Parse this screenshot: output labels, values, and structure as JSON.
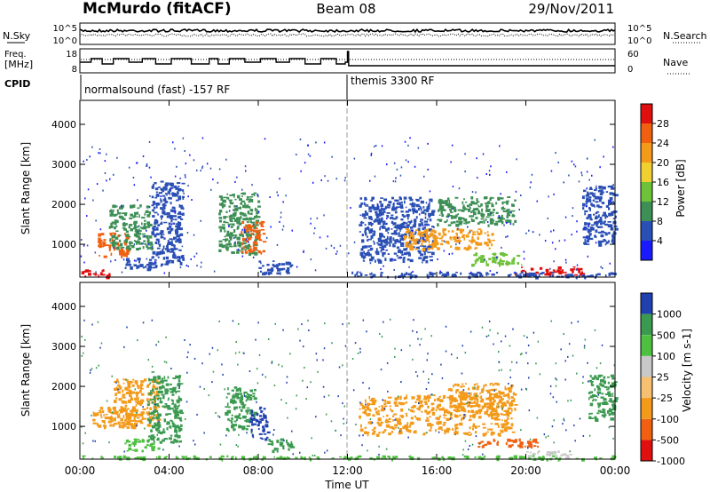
{
  "header": {
    "station": "McMurdo (fitACF)",
    "beam": "Beam 08",
    "date": "29/Nov/2011"
  },
  "chart_data": [
    {
      "type": "line",
      "name": "noise-panel",
      "left_label": "N.Sky",
      "right_label": "N.Search",
      "left_ticks": [
        "10^5",
        "10^0"
      ],
      "right_ticks": [
        "10^5",
        "10^0"
      ],
      "yscale": "log"
    },
    {
      "type": "line",
      "name": "frequency-panel",
      "left_label_lines": [
        "Freq.",
        "[MHz]"
      ],
      "left_ticks": [
        "18",
        "8"
      ],
      "right_label": "Nave",
      "right_ticks": [
        "60",
        "0"
      ],
      "freq_steps": [
        [
          0.0,
          13
        ],
        [
          0.5,
          15
        ],
        [
          1.0,
          12
        ],
        [
          1.5,
          15
        ],
        [
          2.2,
          13
        ],
        [
          2.8,
          15
        ],
        [
          3.4,
          12
        ],
        [
          4.1,
          15
        ],
        [
          5.0,
          12
        ],
        [
          5.8,
          15
        ],
        [
          6.2,
          12
        ],
        [
          6.7,
          15
        ],
        [
          7.4,
          13
        ],
        [
          8.1,
          15
        ],
        [
          8.8,
          13
        ],
        [
          9.4,
          15
        ],
        [
          10.1,
          12
        ],
        [
          10.8,
          15
        ],
        [
          11.5,
          12
        ],
        [
          11.9,
          13
        ],
        [
          12.0,
          19
        ],
        [
          12.05,
          11
        ],
        [
          24.0,
          11
        ]
      ]
    },
    {
      "type": "table",
      "name": "cpid-panel",
      "label": "CPID",
      "segments": [
        {
          "start_hour": 0,
          "end_hour": 12,
          "text": "normalsound (fast) -157 RF"
        },
        {
          "start_hour": 12,
          "end_hour": 24,
          "text": "themis 3300 RF"
        }
      ]
    },
    {
      "type": "heatmap",
      "name": "power-panel",
      "ylabel": "Slant Range [km]",
      "yticks": [
        "1000",
        "2000",
        "3000",
        "4000"
      ],
      "ylim": [
        180,
        4600
      ],
      "colorbar_label": "Power [dB]",
      "colorbar_ticks": [
        "4",
        "8",
        "12",
        "16",
        "20",
        "24",
        "28"
      ],
      "colorbar_colors": [
        "#1a1aff",
        "#2a4fb5",
        "#3d8f55",
        "#6dc23a",
        "#f0d030",
        "#f39a1a",
        "#f06010",
        "#e01010"
      ],
      "echo_regions": [
        [
          0.0,
          1.3,
          200,
          380,
          "#e01010"
        ],
        [
          0.8,
          2.2,
          700,
          1300,
          "#f06010"
        ],
        [
          1.3,
          3.2,
          900,
          2000,
          "#3d8f55"
        ],
        [
          2.0,
          3.4,
          400,
          700,
          "#2a4fb5"
        ],
        [
          3.2,
          4.6,
          500,
          2600,
          "#2a4fb5"
        ],
        [
          6.2,
          8.0,
          800,
          2300,
          "#3d8f55"
        ],
        [
          7.2,
          8.2,
          800,
          1600,
          "#f06010"
        ],
        [
          8.0,
          9.5,
          300,
          600,
          "#2a4fb5"
        ],
        [
          12.5,
          15.8,
          600,
          2200,
          "#2a4fb5"
        ],
        [
          14.5,
          18.5,
          900,
          1400,
          "#f39a1a"
        ],
        [
          16.0,
          19.5,
          1500,
          2200,
          "#3d8f55"
        ],
        [
          17.5,
          19.8,
          500,
          800,
          "#6dc23a"
        ],
        [
          19.5,
          22.5,
          250,
          450,
          "#e01010"
        ],
        [
          22.5,
          24.0,
          1000,
          2500,
          "#2a4fb5"
        ],
        [
          12.0,
          24.0,
          200,
          320,
          "#2a4fb5"
        ]
      ]
    },
    {
      "type": "heatmap",
      "name": "velocity-panel",
      "ylabel": "Slant Range [km]",
      "yticks": [
        "1000",
        "2000",
        "3000",
        "4000"
      ],
      "ylim": [
        180,
        4600
      ],
      "colorbar_label": "Velocity [m s-1]",
      "colorbar_ticks": [
        "1000",
        "500",
        "100",
        "25",
        "-25",
        "-100",
        "-500",
        "-1000"
      ],
      "colorbar_colors": [
        "#2040b0",
        "#3a9a50",
        "#4ec040",
        "#c8c8c8",
        "#f7c070",
        "#f39a1a",
        "#f06010",
        "#e01010"
      ],
      "echo_regions": [
        [
          0.5,
          2.5,
          1000,
          1500,
          "#f39a1a"
        ],
        [
          1.5,
          3.5,
          1000,
          2200,
          "#f39a1a"
        ],
        [
          2.0,
          3.5,
          400,
          700,
          "#4ec040"
        ],
        [
          3.0,
          4.5,
          600,
          2300,
          "#3a9a50"
        ],
        [
          6.5,
          7.8,
          900,
          2000,
          "#3a9a50"
        ],
        [
          7.6,
          8.4,
          700,
          1500,
          "#2040b0"
        ],
        [
          8.4,
          9.5,
          400,
          700,
          "#3a9a50"
        ],
        [
          12.5,
          19.5,
          800,
          1800,
          "#f39a1a"
        ],
        [
          16.5,
          19.5,
          1500,
          2100,
          "#f39a1a"
        ],
        [
          17.8,
          20.5,
          500,
          700,
          "#f06010"
        ],
        [
          20.0,
          22.0,
          200,
          400,
          "#c8c8c8"
        ],
        [
          22.8,
          24.0,
          1200,
          2300,
          "#3a9a50"
        ],
        [
          0.0,
          24.0,
          200,
          280,
          "#4ec040"
        ]
      ]
    }
  ],
  "time_axis": {
    "label": "Time UT",
    "ticks": [
      "00:00",
      "04:00",
      "08:00",
      "12:00",
      "16:00",
      "20:00",
      "00:00"
    ],
    "xlim_hours": [
      0,
      24
    ]
  }
}
